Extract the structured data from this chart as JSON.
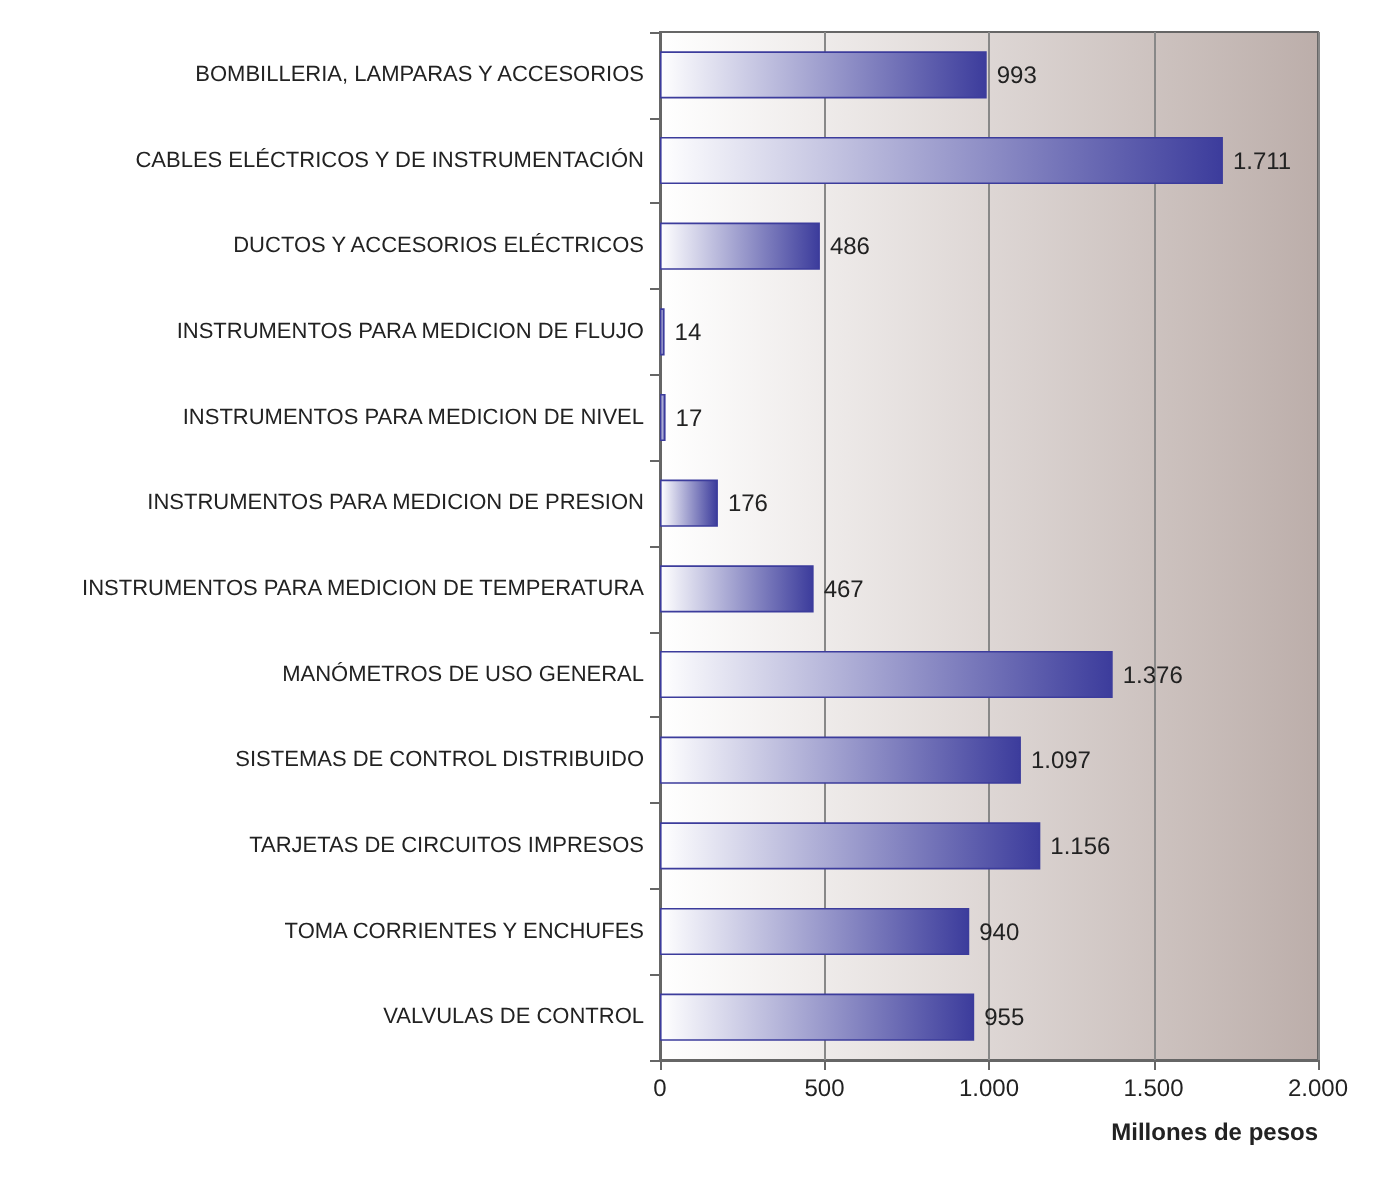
{
  "chart_data": {
    "type": "bar",
    "orientation": "horizontal",
    "xlabel": "Millones de pesos",
    "categories": [
      "BOMBILLERIA, LAMPARAS Y ACCESORIOS",
      "CABLES ELÉCTRICOS Y DE INSTRUMENTACIÓN",
      "DUCTOS Y ACCESORIOS ELÉCTRICOS",
      "INSTRUMENTOS PARA MEDICION DE FLUJO",
      "INSTRUMENTOS PARA MEDICION DE NIVEL",
      "INSTRUMENTOS PARA MEDICION DE PRESION",
      "INSTRUMENTOS PARA MEDICION DE TEMPERATURA",
      "MANÓMETROS DE USO GENERAL",
      "SISTEMAS DE CONTROL DISTRIBUIDO",
      "TARJETAS DE CIRCUITOS IMPRESOS",
      "TOMA CORRIENTES Y ENCHUFES",
      "VALVULAS DE CONTROL"
    ],
    "values": [
      993,
      1711,
      486,
      14,
      17,
      176,
      467,
      1376,
      1097,
      1156,
      940,
      955
    ],
    "value_labels": [
      "993",
      "1.711",
      "486",
      "14",
      "17",
      "176",
      "467",
      "1.376",
      "1.097",
      "1.156",
      "940",
      "955"
    ],
    "color": "#3c3c9c",
    "xlim": [
      0,
      2000
    ],
    "xticks": [
      0,
      500,
      {
        "value": 1000,
        "label": "1.000"
      },
      {
        "value": 1500,
        "label": "1.500"
      },
      {
        "value": 2000,
        "label": "2.000"
      }
    ],
    "grid": "x"
  }
}
